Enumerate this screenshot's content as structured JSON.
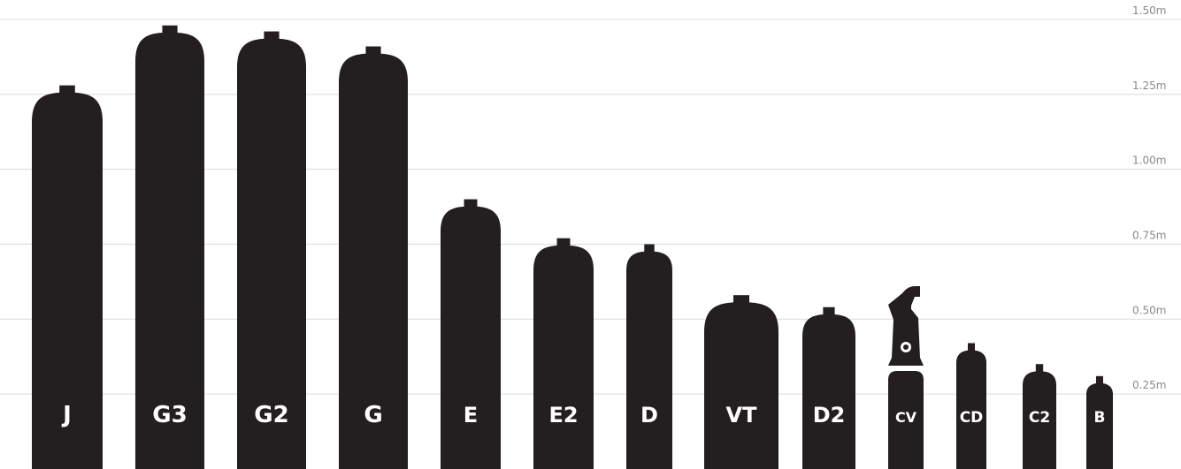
{
  "chart_data": {
    "type": "bar",
    "title": "",
    "xlabel": "",
    "ylabel": "",
    "ylim": [
      0,
      1.5
    ],
    "y_ticks": [
      {
        "value": 0.25,
        "label": "0.25m"
      },
      {
        "value": 0.5,
        "label": "0.50m"
      },
      {
        "value": 0.75,
        "label": "0.75m"
      },
      {
        "value": 1.0,
        "label": "1.00m"
      },
      {
        "value": 1.25,
        "label": "1.25m"
      },
      {
        "value": 1.5,
        "label": "1.50m"
      }
    ],
    "grid": true,
    "colors": {
      "cylinder": "#231f20",
      "label": "#ffffff",
      "grid": "#dcdcdc",
      "tick": "#8a8a8a"
    },
    "categories": [
      "J",
      "G3",
      "G2",
      "G",
      "E",
      "E2",
      "D",
      "VT",
      "D2",
      "CV",
      "CD",
      "C2",
      "B"
    ],
    "values": [
      1.28,
      1.48,
      1.46,
      1.41,
      0.9,
      0.77,
      0.75,
      0.58,
      0.54,
      0.61,
      0.42,
      0.35,
      0.31
    ]
  }
}
